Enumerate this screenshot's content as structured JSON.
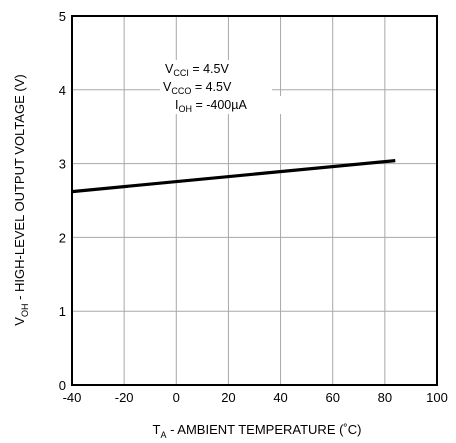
{
  "chart_data": {
    "type": "line",
    "title": "",
    "xlabel": {
      "main": "T",
      "sub": "A",
      "rest": " - AMBIENT  TEMPERATURE (˚C)"
    },
    "ylabel": {
      "main": "V",
      "sub": "OH",
      "rest": " - HIGH-LEVEL OUTPUT VOLTAGE (V)"
    },
    "xlim": [
      -40,
      100
    ],
    "ylim": [
      0,
      5
    ],
    "xticks": [
      -40,
      -20,
      0,
      20,
      40,
      60,
      80,
      100
    ],
    "yticks": [
      0,
      1,
      2,
      3,
      4,
      5
    ],
    "grid": true,
    "series": [
      {
        "x": [
          -40,
          84
        ],
        "y": [
          2.62,
          3.04
        ],
        "color": "#000000"
      }
    ],
    "annotations": [
      {
        "main": "V",
        "sub": "CCI",
        "rest": " = 4.5V"
      },
      {
        "main": "V",
        "sub": "CCO",
        "rest": " = 4.5V"
      },
      {
        "main": "I",
        "sub": "OH",
        "rest": " = -400µA"
      }
    ]
  }
}
